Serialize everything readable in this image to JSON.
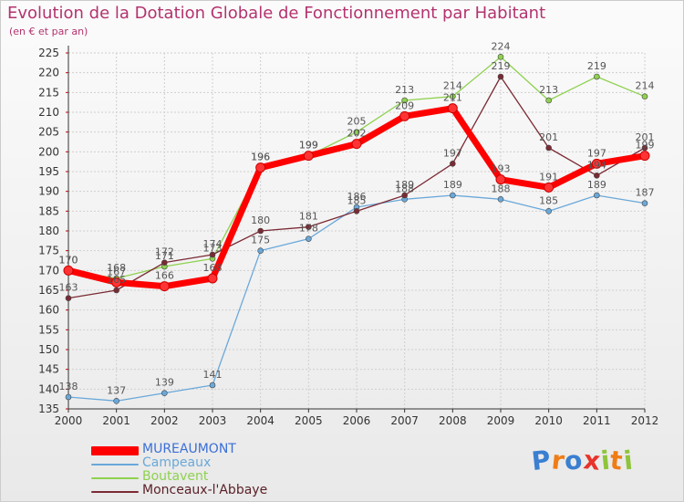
{
  "title": "Evolution de la Dotation Globale de Fonctionnement par Habitant",
  "subtitle": "(en € et par an)",
  "logo_text": "Proxiti",
  "colors": {
    "title": "#b3336e",
    "axis": "#333333",
    "grid": "#cfcfcf",
    "axis_tick_red": "#cc0000",
    "label": "#555555"
  },
  "chart_data": {
    "type": "line",
    "title": "Evolution de la Dotation Globale de Fonctionnement par Habitant",
    "subtitle": "(en € et par an)",
    "xlabel": "",
    "ylabel": "",
    "ylim": [
      135,
      225
    ],
    "yticks": [
      135,
      140,
      145,
      150,
      155,
      160,
      165,
      170,
      175,
      180,
      185,
      190,
      195,
      200,
      205,
      210,
      215,
      220,
      225
    ],
    "grid": true,
    "legend_position": "bottom-left",
    "categories": [
      "2000",
      "2001",
      "2002",
      "2003",
      "2004",
      "2005",
      "2006",
      "2007",
      "2008",
      "2009",
      "2010",
      "2011",
      "2012"
    ],
    "series": [
      {
        "name": "MUREAUMONT",
        "color": "#ff0000",
        "style": "thick",
        "values": [
          170,
          167,
          166,
          168,
          196,
          199,
          202,
          209,
          211,
          193,
          191,
          197,
          199
        ]
      },
      {
        "name": "Campeaux",
        "color": "#6aa8d9",
        "style": "thin",
        "values": [
          138,
          137,
          139,
          141,
          175,
          178,
          186,
          188,
          189,
          188,
          185,
          189,
          187
        ]
      },
      {
        "name": "Boutavent",
        "color": "#8fd14f",
        "style": "thin",
        "values": [
          170,
          168,
          171,
          173,
          196,
          199,
          205,
          213,
          214,
          224,
          213,
          219,
          214
        ]
      },
      {
        "name": "Monceaux-l'Abbaye",
        "color": "#7b2a34",
        "style": "thin",
        "values": [
          163,
          165,
          172,
          174,
          180,
          181,
          185,
          189,
          197,
          219,
          201,
          194,
          201
        ]
      }
    ]
  }
}
